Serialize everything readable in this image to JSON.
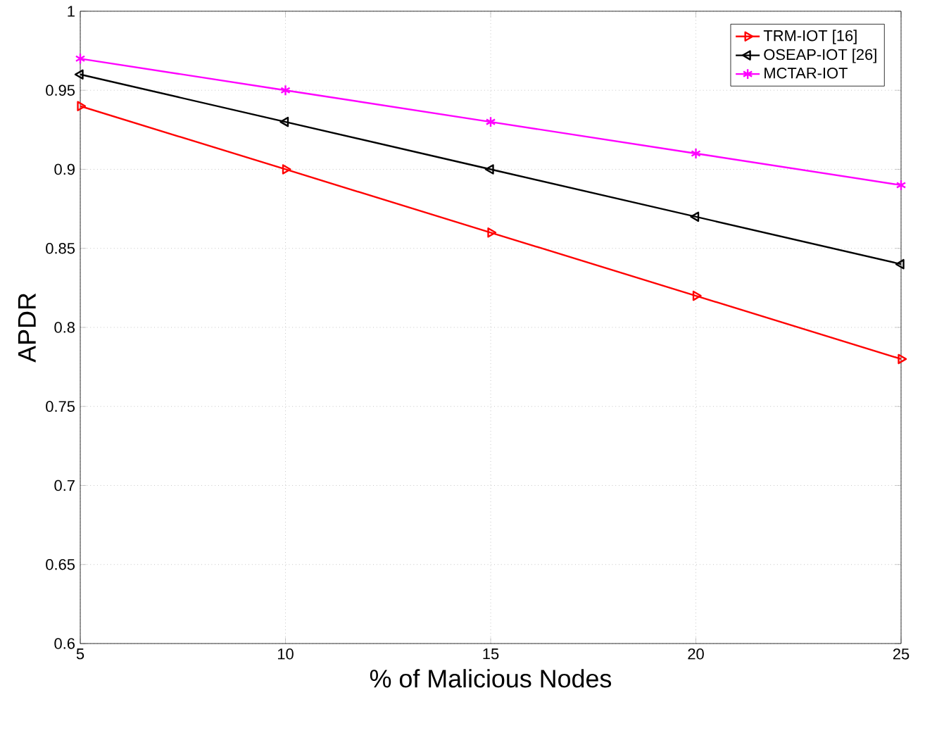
{
  "chart_data": {
    "type": "line",
    "xlabel": "% of Malicious Nodes",
    "ylabel": "APDR",
    "x": [
      5,
      10,
      15,
      20,
      25
    ],
    "series": [
      {
        "name": "TRM-IOT [16]",
        "color": "#ff0000",
        "marker": "triangle",
        "values": [
          0.94,
          0.9,
          0.86,
          0.82,
          0.78
        ]
      },
      {
        "name": "OSEAP-IOT [26]",
        "color": "#000000",
        "marker": "triangle",
        "values": [
          0.96,
          0.93,
          0.9,
          0.87,
          0.84
        ]
      },
      {
        "name": "MCTAR-IOT",
        "color": "#ff00ff",
        "marker": "cross",
        "values": [
          0.97,
          0.95,
          0.93,
          0.91,
          0.89
        ]
      }
    ],
    "xlim": [
      5,
      25
    ],
    "xticks": [
      5,
      10,
      15,
      20,
      25
    ],
    "ylim": [
      0.6,
      1
    ],
    "yticks": [
      0.6,
      0.65,
      0.7,
      0.75,
      0.8,
      0.85,
      0.9,
      0.95,
      1
    ],
    "grid": true,
    "legend": "top right",
    "line_style": "solid"
  }
}
